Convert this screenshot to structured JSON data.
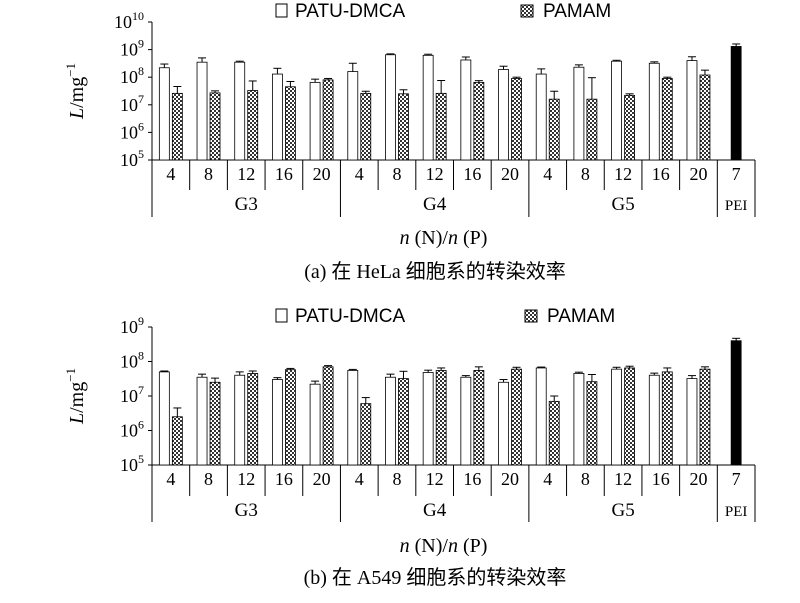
{
  "chart_data": [
    {
      "type": "bar",
      "y_scale": "log",
      "ylabel": "L/mg",
      "ylabel_sup": "−1",
      "xlabel_n1": "n",
      "xlabel_mid": " (N)/",
      "xlabel_n2": "n",
      "xlabel_end": " (P)",
      "caption": "(a) 在 HeLa 细胞系的转染效率",
      "ylim_exp": [
        5,
        10
      ],
      "yticks": [
        {
          "base": "10",
          "exp": "5"
        },
        {
          "base": "10",
          "exp": "6"
        },
        {
          "base": "10",
          "exp": "7"
        },
        {
          "base": "10",
          "exp": "8"
        },
        {
          "base": "10",
          "exp": "9"
        },
        {
          "base": "10",
          "exp": "10"
        }
      ],
      "legend": [
        "PATU-DMCA",
        "PAMAM"
      ],
      "groups": [
        {
          "name": "G3",
          "ratios": [
            "4",
            "8",
            "12",
            "16",
            "20"
          ]
        },
        {
          "name": "G4",
          "ratios": [
            "4",
            "8",
            "12",
            "16",
            "20"
          ]
        },
        {
          "name": "G5",
          "ratios": [
            "4",
            "8",
            "12",
            "16",
            "20"
          ]
        }
      ],
      "pei": {
        "ratio": "7",
        "label": "PEI",
        "value": 1300000000.0,
        "err": 300000000.0
      },
      "series": [
        {
          "name": "PATU-DMCA",
          "values": [
            220000000.0,
            350000000.0,
            350000000.0,
            130000000.0,
            65000000.0,
            160000000.0,
            650000000.0,
            620000000.0,
            420000000.0,
            190000000.0,
            130000000.0,
            230000000.0,
            380000000.0,
            320000000.0,
            400000000.0
          ],
          "errors": [
            80000000.0,
            150000000.0,
            30000000.0,
            80000000.0,
            20000000.0,
            160000000.0,
            50000000.0,
            60000000.0,
            120000000.0,
            60000000.0,
            70000000.0,
            50000000.0,
            30000000.0,
            40000000.0,
            150000000.0
          ]
        },
        {
          "name": "PAMAM",
          "values": [
            26000000.0,
            27000000.0,
            33000000.0,
            45000000.0,
            80000000.0,
            26000000.0,
            25000000.0,
            26000000.0,
            65000000.0,
            90000000.0,
            16000000.0,
            16000000.0,
            22000000.0,
            90000000.0,
            120000000.0
          ],
          "errors": [
            20000000.0,
            5000000.0,
            40000000.0,
            25000000.0,
            10000000.0,
            5000000.0,
            10000000.0,
            50000000.0,
            10000000.0,
            10000000.0,
            15000000.0,
            80000000.0,
            3000000.0,
            10000000.0,
            60000000.0
          ]
        }
      ]
    },
    {
      "type": "bar",
      "y_scale": "log",
      "ylabel": "L/mg",
      "ylabel_sup": "−1",
      "xlabel_n1": "n",
      "xlabel_mid": " (N)/",
      "xlabel_n2": "n",
      "xlabel_end": " (P)",
      "caption": "(b) 在 A549 细胞系的转染效率",
      "ylim_exp": [
        5,
        9
      ],
      "yticks": [
        {
          "base": "10",
          "exp": "5"
        },
        {
          "base": "10",
          "exp": "6"
        },
        {
          "base": "10",
          "exp": "7"
        },
        {
          "base": "10",
          "exp": "8"
        },
        {
          "base": "10",
          "exp": "9"
        }
      ],
      "legend": [
        "PATU-DMCA",
        "PAMAM"
      ],
      "groups": [
        {
          "name": "G3",
          "ratios": [
            "4",
            "8",
            "12",
            "16",
            "20"
          ]
        },
        {
          "name": "G4",
          "ratios": [
            "4",
            "8",
            "12",
            "16",
            "20"
          ]
        },
        {
          "name": "G5",
          "ratios": [
            "4",
            "8",
            "12",
            "16",
            "20"
          ]
        }
      ],
      "pei": {
        "ratio": "7",
        "label": "PEI",
        "value": 400000000.0,
        "err": 70000000.0
      },
      "series": [
        {
          "name": "PATU-DMCA",
          "values": [
            50000000.0,
            35000000.0,
            40000000.0,
            30000000.0,
            22000000.0,
            55000000.0,
            35000000.0,
            48000000.0,
            35000000.0,
            25000000.0,
            65000000.0,
            45000000.0,
            60000000.0,
            40000000.0,
            32000000.0
          ],
          "errors": [
            3000000.0,
            8000000.0,
            10000000.0,
            4000000.0,
            5000000.0,
            4000000.0,
            8000000.0,
            8000000.0,
            4000000.0,
            5000000.0,
            4000000.0,
            4000000.0,
            8000000.0,
            6000000.0,
            7000000.0
          ]
        },
        {
          "name": "PAMAM",
          "values": [
            2500000.0,
            25000000.0,
            45000000.0,
            58000000.0,
            70000000.0,
            6000000.0,
            32000000.0,
            55000000.0,
            55000000.0,
            60000000.0,
            7000000.0,
            26000000.0,
            65000000.0,
            50000000.0,
            60000000.0
          ],
          "errors": [
            2000000.0,
            8000000.0,
            8000000.0,
            5000000.0,
            6000000.0,
            3000000.0,
            20000000.0,
            10000000.0,
            15000000.0,
            8000000.0,
            3000000.0,
            16000000.0,
            8000000.0,
            15000000.0,
            10000000.0
          ]
        }
      ]
    }
  ]
}
